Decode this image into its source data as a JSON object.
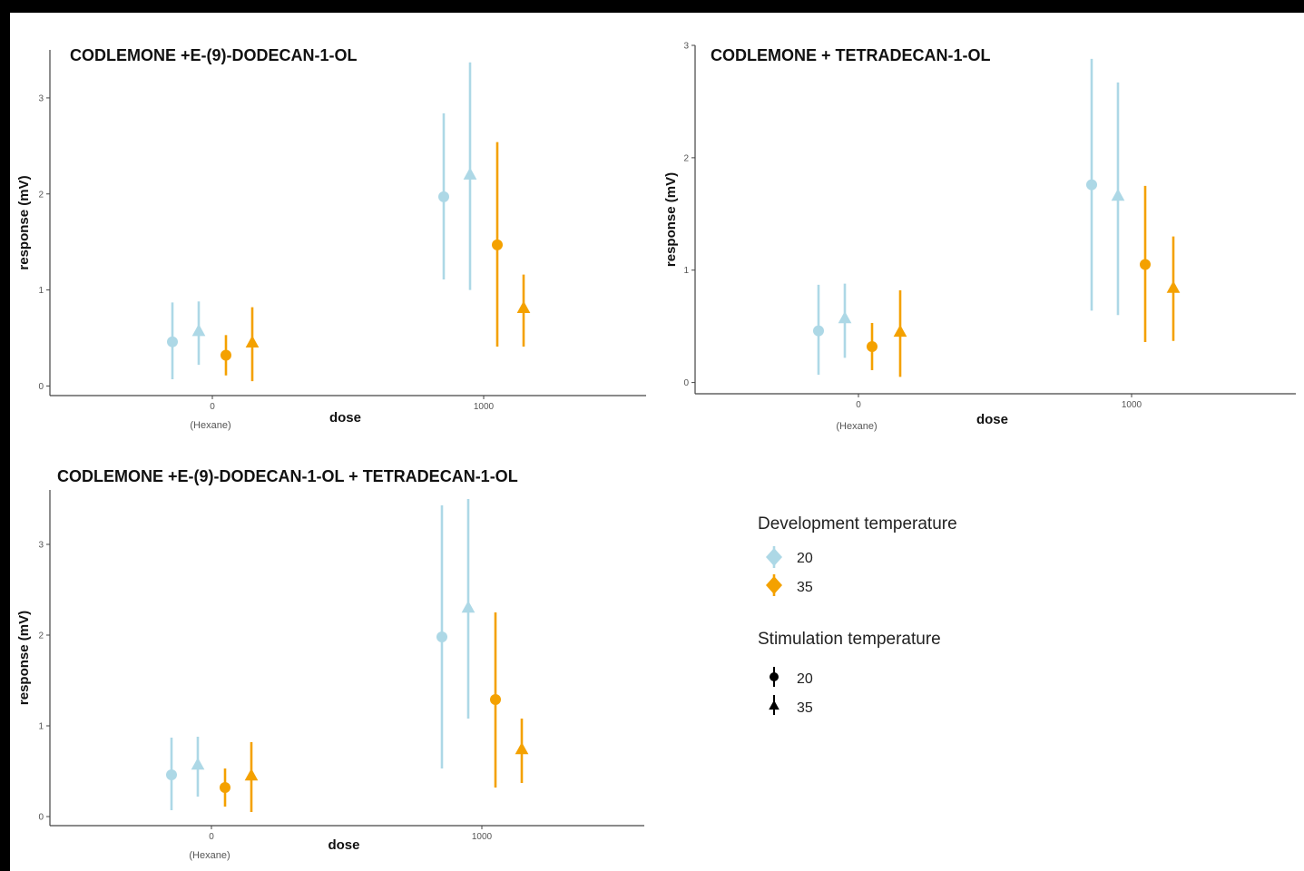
{
  "colors": {
    "dev20": "#add8e6",
    "dev35": "#f4a100",
    "stim": "#000000"
  },
  "chart_data": [
    {
      "type": "scatter",
      "title": "CODLEMONE +E-(9)-DODECAN-1-OL",
      "xlabel": "dose",
      "ylabel": "response (mV)",
      "x_categories": [
        "0",
        "1000"
      ],
      "x_sublabels": [
        "(Hexane)",
        ""
      ],
      "yticks": [
        0,
        1,
        2,
        3
      ],
      "ylim": [
        -0.1,
        3.5
      ],
      "series": [
        {
          "dev_temp": "20",
          "stim_temp": "20",
          "points": [
            {
              "x": "0",
              "y": 0.46,
              "low": 0.07,
              "high": 0.87
            },
            {
              "x": "1000",
              "y": 1.97,
              "low": 1.11,
              "high": 2.84
            }
          ]
        },
        {
          "dev_temp": "20",
          "stim_temp": "35",
          "points": [
            {
              "x": "0",
              "y": 0.57,
              "low": 0.22,
              "high": 0.88
            },
            {
              "x": "1000",
              "y": 2.2,
              "low": 1.0,
              "high": 3.37
            }
          ]
        },
        {
          "dev_temp": "35",
          "stim_temp": "20",
          "points": [
            {
              "x": "0",
              "y": 0.32,
              "low": 0.11,
              "high": 0.53
            },
            {
              "x": "1000",
              "y": 1.47,
              "low": 0.41,
              "high": 2.54
            }
          ]
        },
        {
          "dev_temp": "35",
          "stim_temp": "35",
          "points": [
            {
              "x": "0",
              "y": 0.45,
              "low": 0.05,
              "high": 0.82
            },
            {
              "x": "1000",
              "y": 0.81,
              "low": 0.41,
              "high": 1.16
            }
          ]
        }
      ]
    },
    {
      "type": "scatter",
      "title": "CODLEMONE + TETRADECAN-1-OL",
      "xlabel": "dose",
      "ylabel": "response (mV)",
      "x_categories": [
        "0",
        "1000"
      ],
      "x_sublabels": [
        "(Hexane)",
        ""
      ],
      "yticks": [
        0,
        1,
        2,
        3
      ],
      "ylim": [
        -0.1,
        3.0
      ],
      "series": [
        {
          "dev_temp": "20",
          "stim_temp": "20",
          "points": [
            {
              "x": "0",
              "y": 0.46,
              "low": 0.07,
              "high": 0.87
            },
            {
              "x": "1000",
              "y": 1.76,
              "low": 0.64,
              "high": 2.88
            }
          ]
        },
        {
          "dev_temp": "20",
          "stim_temp": "35",
          "points": [
            {
              "x": "0",
              "y": 0.57,
              "low": 0.22,
              "high": 0.88
            },
            {
              "x": "1000",
              "y": 1.66,
              "low": 0.6,
              "high": 2.67
            }
          ]
        },
        {
          "dev_temp": "35",
          "stim_temp": "20",
          "points": [
            {
              "x": "0",
              "y": 0.32,
              "low": 0.11,
              "high": 0.53
            },
            {
              "x": "1000",
              "y": 1.05,
              "low": 0.36,
              "high": 1.75
            }
          ]
        },
        {
          "dev_temp": "35",
          "stim_temp": "35",
          "points": [
            {
              "x": "0",
              "y": 0.45,
              "low": 0.05,
              "high": 0.82
            },
            {
              "x": "1000",
              "y": 0.84,
              "low": 0.37,
              "high": 1.3
            }
          ]
        }
      ]
    },
    {
      "type": "scatter",
      "title": "CODLEMONE +E-(9)-DODECAN-1-OL + TETRADECAN-1-OL",
      "xlabel": "dose",
      "ylabel": "response (mV)",
      "x_categories": [
        "0",
        "1000"
      ],
      "x_sublabels": [
        "(Hexane)",
        ""
      ],
      "yticks": [
        0,
        1,
        2,
        3
      ],
      "ylim": [
        -0.1,
        3.6
      ],
      "series": [
        {
          "dev_temp": "20",
          "stim_temp": "20",
          "points": [
            {
              "x": "0",
              "y": 0.46,
              "low": 0.07,
              "high": 0.87
            },
            {
              "x": "1000",
              "y": 1.98,
              "low": 0.53,
              "high": 3.43
            }
          ]
        },
        {
          "dev_temp": "20",
          "stim_temp": "35",
          "points": [
            {
              "x": "0",
              "y": 0.57,
              "low": 0.22,
              "high": 0.88
            },
            {
              "x": "1000",
              "y": 2.3,
              "low": 1.08,
              "high": 3.5
            }
          ]
        },
        {
          "dev_temp": "35",
          "stim_temp": "20",
          "points": [
            {
              "x": "0",
              "y": 0.32,
              "low": 0.11,
              "high": 0.53
            },
            {
              "x": "1000",
              "y": 1.29,
              "low": 0.32,
              "high": 2.25
            }
          ]
        },
        {
          "dev_temp": "35",
          "stim_temp": "35",
          "points": [
            {
              "x": "0",
              "y": 0.45,
              "low": 0.05,
              "high": 0.82
            },
            {
              "x": "1000",
              "y": 0.74,
              "low": 0.37,
              "high": 1.08
            }
          ]
        }
      ]
    }
  ],
  "legend": {
    "dev_title": "Development temperature",
    "dev_items": [
      {
        "label": "20",
        "color": "#add8e6"
      },
      {
        "label": "35",
        "color": "#f4a100"
      }
    ],
    "stim_title": "Stimulation temperature",
    "stim_items": [
      {
        "label": "20",
        "shape": "circle"
      },
      {
        "label": "35",
        "shape": "triangle"
      }
    ]
  }
}
